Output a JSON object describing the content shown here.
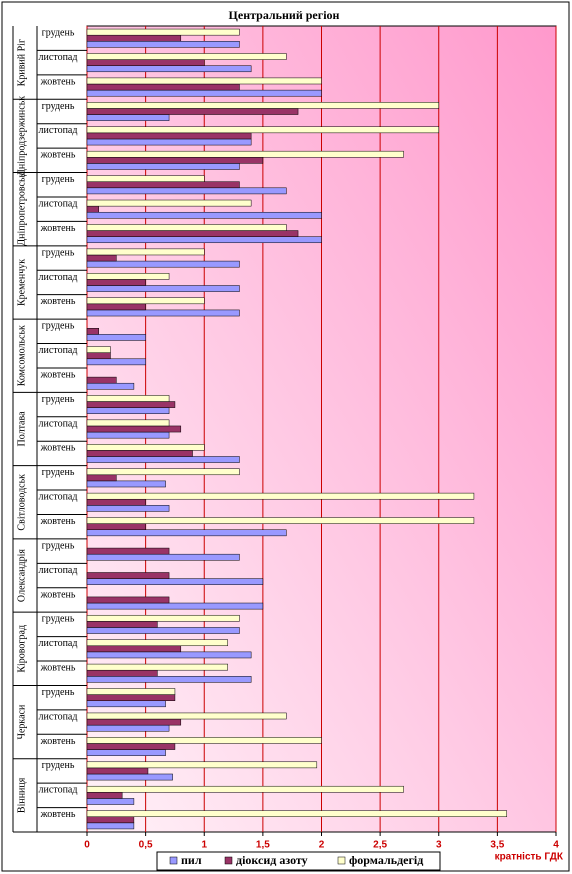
{
  "chart_data": {
    "type": "bar",
    "orientation": "horizontal",
    "title": "Центральний регіон",
    "xlabel": "кратність ГДК",
    "groups": [
      "Кривий Ріг",
      "Дніпродзержинськ",
      "Дніпропетровськ",
      "Кременчук",
      "Комсомольськ",
      "Полтава",
      "Світловодськ",
      "Олександрія",
      "Кіровоград",
      "Черкаси",
      "Вінниця"
    ],
    "categories": [
      "грудень",
      "листопад",
      "жовтень",
      "грудень",
      "листопад",
      "жовтень",
      "грудень",
      "листопад",
      "жовтень",
      "грудень",
      "листопад",
      "жовтень",
      "грудень",
      "листопад",
      "жовтень",
      "грудень",
      "листопад",
      "жовтень",
      "грудень",
      "листопад",
      "жовтень",
      "грудень",
      "листопад",
      "жовтень",
      "грудень",
      "листопад",
      "жовтень",
      "грудень",
      "листопад",
      "жовтень",
      "грудень",
      "листопад",
      "жовтень"
    ],
    "series": [
      {
        "name": "пил",
        "color": "#9999ff",
        "values": [
          1.3,
          1.4,
          2.0,
          0.7,
          1.4,
          1.3,
          1.7,
          2.0,
          2.0,
          1.3,
          1.3,
          1.3,
          0.5,
          0.5,
          0.4,
          0.7,
          0.7,
          1.3,
          0.67,
          0.7,
          1.7,
          1.3,
          1.5,
          1.5,
          1.3,
          1.4,
          1.4,
          0.67,
          0.7,
          0.67,
          0.73,
          0.4,
          0.4
        ]
      },
      {
        "name": "діоксид азоту",
        "color": "#993366",
        "values": [
          0.8,
          1.0,
          1.3,
          1.8,
          1.4,
          1.5,
          1.3,
          0.1,
          1.8,
          0.25,
          0.5,
          0.5,
          0.1,
          0.2,
          0.25,
          0.75,
          0.8,
          0.9,
          0.25,
          0.5,
          0.5,
          0.7,
          0.7,
          0.7,
          0.6,
          0.8,
          0.6,
          0.75,
          0.8,
          0.75,
          0.52,
          0.3,
          0.4
        ]
      },
      {
        "name": "формальдегід",
        "color": "#ffffcc",
        "values": [
          1.3,
          1.7,
          2.0,
          3.0,
          3.0,
          2.7,
          1.0,
          1.4,
          1.7,
          1.0,
          0.7,
          1.0,
          null,
          0.2,
          null,
          0.7,
          0.7,
          1.0,
          1.3,
          3.3,
          3.3,
          null,
          null,
          null,
          1.3,
          1.2,
          1.2,
          0.75,
          1.7,
          2.0,
          1.96,
          2.7,
          3.58
        ]
      }
    ],
    "xlim": [
      0,
      4
    ],
    "xticks": [
      0,
      {
        "value": 0.5,
        "label": "0,5"
      },
      1,
      {
        "value": 1.5,
        "label": "1,5"
      },
      2,
      {
        "value": 2.5,
        "label": "2,5"
      },
      3,
      {
        "value": 3.5,
        "label": "3,5"
      },
      4
    ],
    "grid": true,
    "legend": "bottom"
  }
}
